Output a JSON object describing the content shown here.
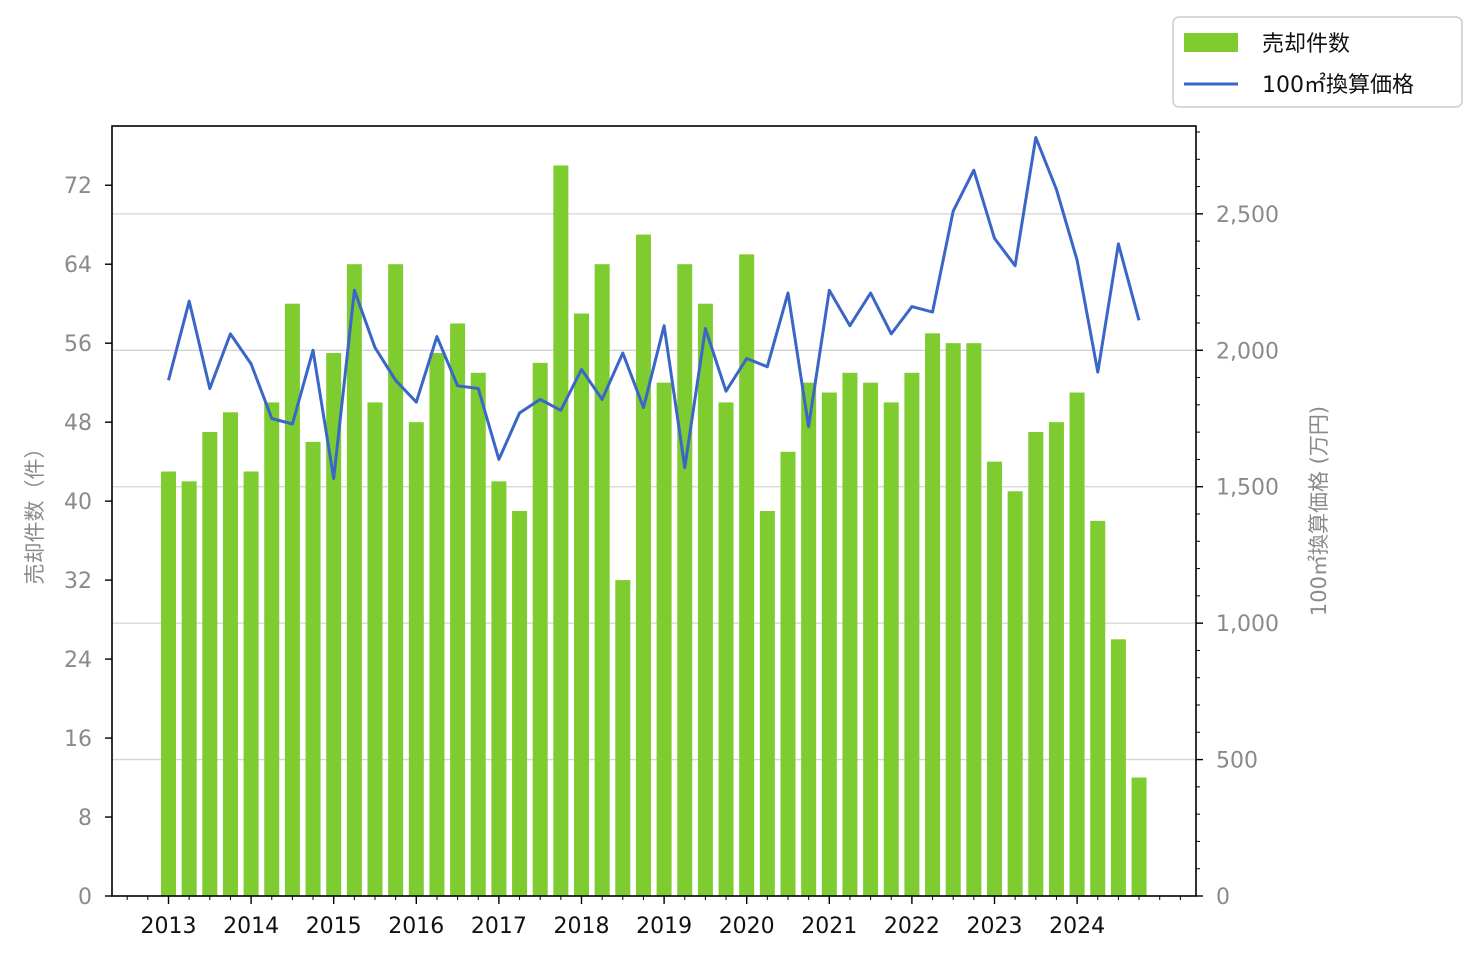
{
  "colors": {
    "bar": "#7fcc30",
    "line": "#3a66c8",
    "grid": "#d4d4d4",
    "axis_text": "#8a8a8a",
    "x_text": "#111111"
  },
  "chart_data": {
    "type": "bar",
    "categories": [
      "2013-Q1",
      "2013-Q2",
      "2013-Q3",
      "2013-Q4",
      "2014-Q1",
      "2014-Q2",
      "2014-Q3",
      "2014-Q4",
      "2015-Q1",
      "2015-Q2",
      "2015-Q3",
      "2015-Q4",
      "2016-Q1",
      "2016-Q2",
      "2016-Q3",
      "2016-Q4",
      "2017-Q1",
      "2017-Q2",
      "2017-Q3",
      "2017-Q4",
      "2018-Q1",
      "2018-Q2",
      "2018-Q3",
      "2018-Q4",
      "2019-Q1",
      "2019-Q2",
      "2019-Q3",
      "2019-Q4",
      "2020-Q1",
      "2020-Q2",
      "2020-Q3",
      "2020-Q4",
      "2021-Q1",
      "2021-Q2",
      "2021-Q3",
      "2021-Q4",
      "2022-Q1",
      "2022-Q2",
      "2022-Q3",
      "2022-Q4",
      "2023-Q1",
      "2023-Q2",
      "2023-Q3",
      "2023-Q4",
      "2024-Q1",
      "2024-Q2",
      "2024-Q3",
      "2024-Q4"
    ],
    "x_tick_labels": [
      "2013",
      "2014",
      "2015",
      "2016",
      "2017",
      "2018",
      "2019",
      "2020",
      "2021",
      "2022",
      "2023",
      "2024"
    ],
    "series": [
      {
        "name": "売却件数",
        "type": "bar",
        "axis": "left",
        "values": [
          43,
          42,
          47,
          49,
          43,
          50,
          60,
          46,
          55,
          64,
          50,
          64,
          48,
          55,
          58,
          53,
          42,
          39,
          54,
          74,
          59,
          64,
          32,
          67,
          52,
          64,
          60,
          50,
          65,
          39,
          45,
          52,
          51,
          53,
          52,
          50,
          53,
          57,
          56,
          56,
          44,
          41,
          47,
          48,
          51,
          38,
          26,
          12
        ]
      },
      {
        "name": "100㎡換算価格",
        "type": "line",
        "axis": "right",
        "values": [
          1890,
          2180,
          1860,
          2060,
          1950,
          1750,
          1730,
          2000,
          1530,
          2220,
          2010,
          1890,
          1810,
          2050,
          1870,
          1860,
          1600,
          1770,
          1820,
          1780,
          1930,
          1820,
          1990,
          1790,
          2090,
          1570,
          2080,
          1850,
          1970,
          1940,
          2210,
          1720,
          2220,
          2090,
          2210,
          2060,
          2160,
          2140,
          2510,
          2660,
          2410,
          2310,
          2780,
          2590,
          2330,
          1920,
          2390,
          2110
        ]
      }
    ],
    "y_left": {
      "label": "売却件数（件）",
      "ylim": [
        0,
        78
      ],
      "ticks": [
        0,
        8,
        16,
        24,
        32,
        40,
        48,
        56,
        64,
        72
      ]
    },
    "y_right": {
      "label": "100㎡換算価格 (万円)",
      "ylim": [
        0,
        2822
      ],
      "ticks": [
        0,
        500,
        1000,
        1500,
        2000,
        2500
      ],
      "tick_labels": [
        "0",
        "500",
        "1,000",
        "1,500",
        "2,000",
        "2,500"
      ]
    },
    "grid": "right-axis horizontal",
    "legend": {
      "position": "top-right",
      "entries": [
        "売却件数",
        "100㎡換算価格"
      ]
    }
  }
}
